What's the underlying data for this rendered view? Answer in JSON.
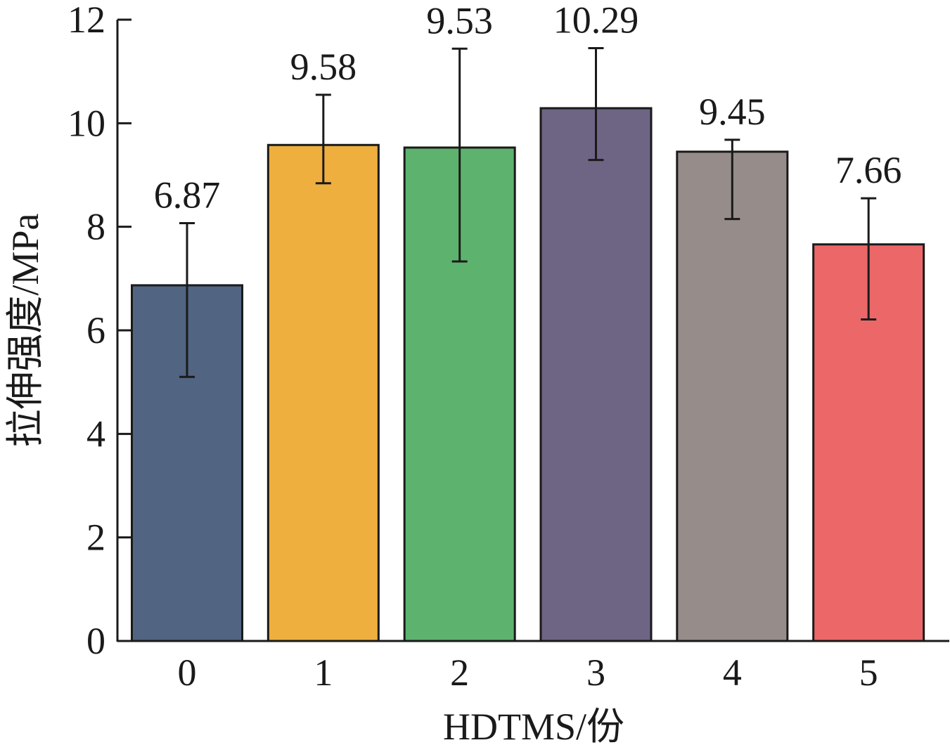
{
  "chart_data": {
    "type": "bar",
    "categories": [
      "0",
      "1",
      "2",
      "3",
      "4",
      "5"
    ],
    "values": [
      6.87,
      9.58,
      9.53,
      10.29,
      9.45,
      7.66
    ],
    "error_low": [
      5.1,
      8.84,
      7.33,
      9.29,
      8.15,
      6.21
    ],
    "error_high": [
      8.07,
      10.55,
      11.44,
      11.45,
      9.68,
      8.55
    ],
    "value_labels": [
      "6.87",
      "9.58",
      "9.53",
      "10.29",
      "9.45",
      "7.66"
    ],
    "colors": [
      "#516482",
      "#eeaf3f",
      "#5db36e",
      "#6e6484",
      "#968d8a",
      "#ec6768"
    ],
    "xlabel": "HDTMS/份",
    "ylabel": "拉伸强度/MPa",
    "ylim": [
      0,
      12
    ],
    "yticks": [
      0,
      2,
      4,
      6,
      8,
      10,
      12
    ],
    "grid": false,
    "legend": "none"
  }
}
